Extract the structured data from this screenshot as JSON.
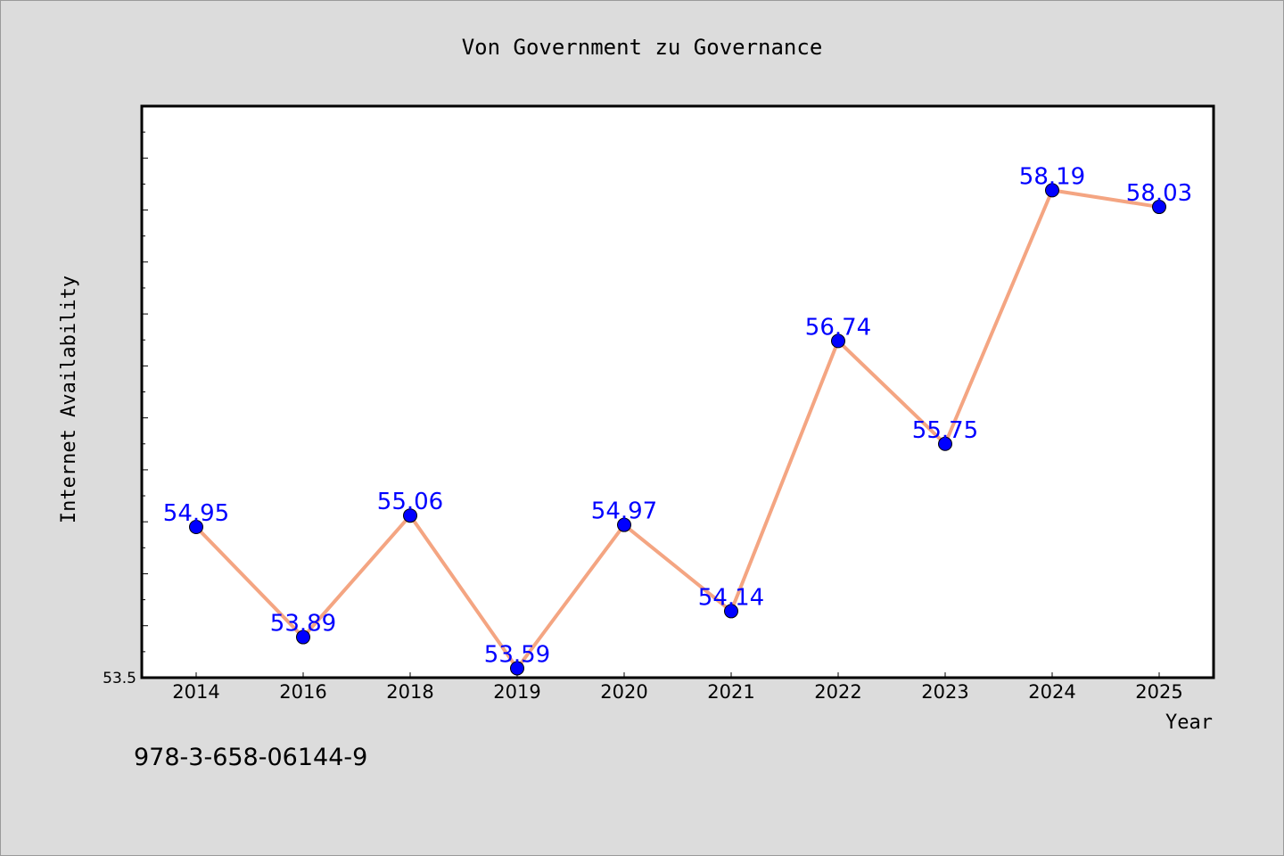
{
  "chart_data": {
    "type": "line",
    "title": "Von Government zu Governance",
    "xlabel": "Year",
    "ylabel": "Internet Availability",
    "categories": [
      "2014",
      "2016",
      "2018",
      "2019",
      "2020",
      "2021",
      "2022",
      "2023",
      "2024",
      "2025"
    ],
    "series": [
      {
        "values": [
          54.95,
          53.89,
          55.06,
          53.59,
          54.97,
          54.14,
          56.74,
          55.75,
          58.19,
          58.03
        ]
      }
    ],
    "value_labels": [
      "54.95",
      "53.89",
      "55.06",
      "53.59",
      "54.97",
      "54.14",
      "56.74",
      "55.75",
      "58.19",
      "58.03"
    ],
    "ylim": [
      53.5,
      59.0
    ],
    "ytick_label": "53.5",
    "grid": false,
    "legend": "none",
    "colors": {
      "line": "#f4a582",
      "marker": "#0000ff",
      "value_label": "#0000ff",
      "background": "#dcdcdc",
      "plot_background": "#ffffff"
    }
  },
  "footer": {
    "code": "978-3-658-06144-9"
  }
}
